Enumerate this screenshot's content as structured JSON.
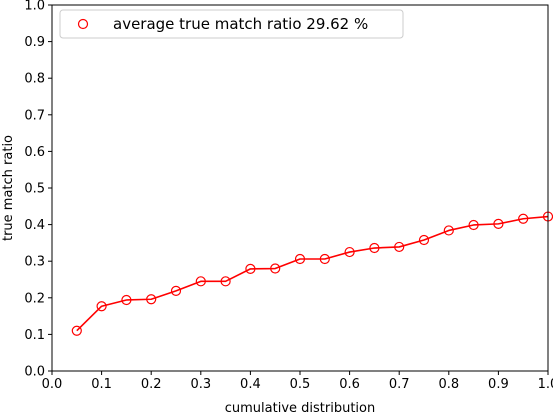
{
  "chart_data": {
    "type": "line",
    "title": "",
    "xlabel": "cumulative distribution",
    "ylabel": "true match ratio",
    "xlim": [
      0.0,
      1.0
    ],
    "ylim": [
      0.0,
      1.0
    ],
    "x_ticks": [
      "0.0",
      "0.1",
      "0.2",
      "0.3",
      "0.4",
      "0.5",
      "0.6",
      "0.7",
      "0.8",
      "0.9",
      "1.0"
    ],
    "y_ticks": [
      "0.0",
      "0.1",
      "0.2",
      "0.3",
      "0.4",
      "0.5",
      "0.6",
      "0.7",
      "0.8",
      "0.9",
      "1.0"
    ],
    "grid": false,
    "legend_position": "top-left",
    "series": [
      {
        "name": "average true match ratio 29.62 %",
        "color": "#ff0000",
        "marker": "open-circle",
        "x": [
          0.05,
          0.1,
          0.15,
          0.2,
          0.25,
          0.3,
          0.35,
          0.4,
          0.45,
          0.5,
          0.55,
          0.6,
          0.65,
          0.7,
          0.75,
          0.8,
          0.85,
          0.9,
          0.95,
          1.0
        ],
        "y": [
          0.11,
          0.177,
          0.194,
          0.196,
          0.219,
          0.245,
          0.245,
          0.279,
          0.28,
          0.306,
          0.306,
          0.325,
          0.336,
          0.339,
          0.358,
          0.384,
          0.399,
          0.402,
          0.416,
          0.422
        ]
      }
    ]
  }
}
